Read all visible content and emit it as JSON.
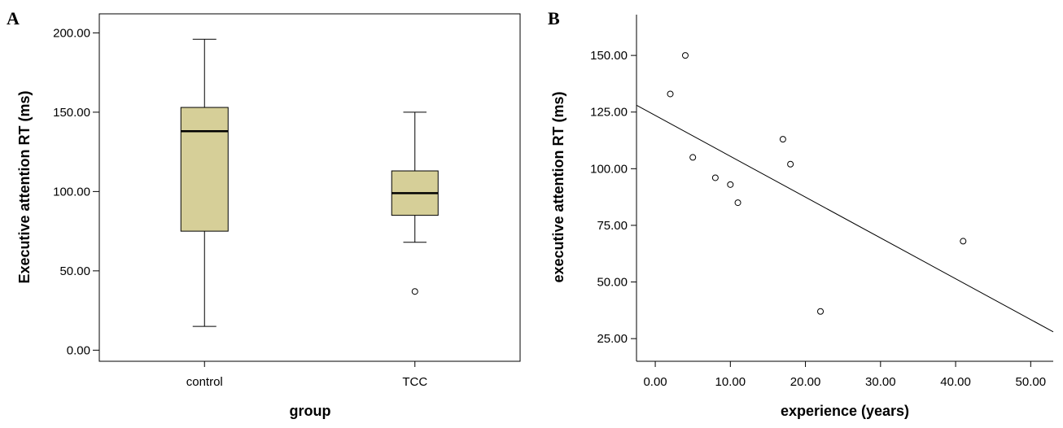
{
  "chart_data": [
    {
      "type": "box",
      "panel_label": "A",
      "xlabel": "group",
      "ylabel": "Executive attention RT (ms)",
      "ylim": [
        -7,
        212
      ],
      "yticks": [
        "0.00",
        "50.00",
        "100.00",
        "150.00",
        "200.00"
      ],
      "ytick_values": [
        0,
        50,
        100,
        150,
        200
      ],
      "categories": [
        "control",
        "TCC"
      ],
      "box_color": "#d6cf98",
      "boxes": [
        {
          "label": "control",
          "whisker_low": 15,
          "q1": 75,
          "median": 138,
          "q3": 153,
          "whisker_high": 196,
          "outliers": []
        },
        {
          "label": "TCC",
          "whisker_low": 68,
          "q1": 85,
          "median": 99,
          "q3": 113,
          "whisker_high": 150,
          "outliers": [
            37
          ]
        }
      ]
    },
    {
      "type": "scatter",
      "panel_label": "B",
      "xlabel": "experience (years)",
      "ylabel": "executive attention RT (ms)",
      "xlim": [
        -2.5,
        53
      ],
      "ylim": [
        15,
        168
      ],
      "xticks": [
        "0.00",
        "10.00",
        "20.00",
        "30.00",
        "40.00",
        "50.00"
      ],
      "xtick_values": [
        0,
        10,
        20,
        30,
        40,
        50
      ],
      "yticks": [
        "25.00",
        "50.00",
        "75.00",
        "100.00",
        "125.00",
        "150.00"
      ],
      "ytick_values": [
        25,
        50,
        75,
        100,
        125,
        150
      ],
      "points": [
        {
          "x": 2,
          "y": 133
        },
        {
          "x": 4,
          "y": 150
        },
        {
          "x": 5,
          "y": 105
        },
        {
          "x": 8,
          "y": 96
        },
        {
          "x": 10,
          "y": 93
        },
        {
          "x": 11,
          "y": 85
        },
        {
          "x": 17,
          "y": 113
        },
        {
          "x": 18,
          "y": 102
        },
        {
          "x": 22,
          "y": 37
        },
        {
          "x": 41,
          "y": 68
        }
      ],
      "fit_line": {
        "x1": -2.5,
        "y1": 128,
        "x2": 53,
        "y2": 28
      }
    }
  ]
}
